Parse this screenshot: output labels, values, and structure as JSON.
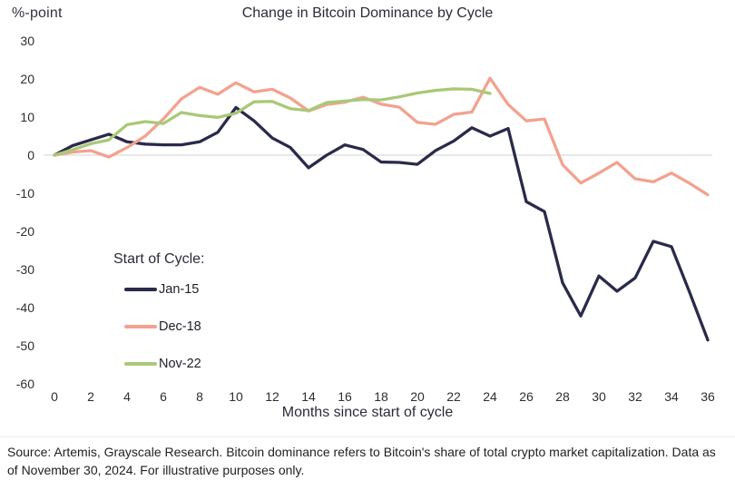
{
  "header": {
    "y_axis_unit": "%-point",
    "title": "Change in Bitcoin Dominance by Cycle"
  },
  "chart_data": {
    "type": "line",
    "title": "Change in Bitcoin Dominance by Cycle",
    "xlabel": "Months since start of cycle",
    "ylabel": "%-point",
    "xlim": [
      0,
      36
    ],
    "ylim": [
      -60,
      30
    ],
    "xticks": [
      0,
      2,
      4,
      6,
      8,
      10,
      12,
      14,
      16,
      18,
      20,
      22,
      24,
      26,
      28,
      30,
      32,
      34,
      36
    ],
    "yticks": [
      30,
      20,
      10,
      0,
      -10,
      -20,
      -30,
      -40,
      -50,
      -60
    ],
    "grid": "horizontal zero-line only",
    "legend_title": "Start of Cycle:",
    "legend_position": "inside lower-left",
    "x": [
      0,
      1,
      2,
      3,
      4,
      5,
      6,
      7,
      8,
      9,
      10,
      11,
      12,
      13,
      14,
      15,
      16,
      17,
      18,
      19,
      20,
      21,
      22,
      23,
      24,
      25,
      26,
      27,
      28,
      29,
      30,
      31,
      32,
      33,
      34,
      35,
      36
    ],
    "series": [
      {
        "name": "Jan-15",
        "color": "#2a2a4a",
        "values": [
          0,
          2.5,
          4,
          5.5,
          3.5,
          2.9,
          2.7,
          2.7,
          3.5,
          6,
          12.5,
          9,
          4.5,
          2,
          -3.3,
          0,
          2.7,
          1.5,
          -1.8,
          -1.9,
          -2.4,
          1.2,
          3.7,
          7.2,
          5,
          7,
          -12.2,
          -14.8,
          -33.5,
          -42.2,
          -31.7,
          -35.7,
          -32.2,
          -22.6,
          -24,
          -36,
          -48.5
        ]
      },
      {
        "name": "Dec-18",
        "color": "#f2a28f",
        "values": [
          0,
          0.8,
          1.2,
          -0.5,
          2,
          5,
          9.5,
          14.8,
          17.8,
          16,
          19,
          16.6,
          17.3,
          15,
          11.6,
          13.3,
          13.9,
          15.2,
          13.4,
          12.6,
          8.6,
          8.1,
          10.7,
          11.3,
          20.2,
          13.3,
          9,
          9.5,
          -2.5,
          -7.3,
          -4.7,
          -1.9,
          -6.2,
          -7,
          -4.7,
          -7.4,
          -10.4
        ]
      },
      {
        "name": "Nov-22",
        "color": "#aac878",
        "values": [
          0,
          1.4,
          3,
          4,
          8,
          8.8,
          8.3,
          11.2,
          10.4,
          9.9,
          11,
          14,
          14.1,
          12.2,
          11.7,
          13.8,
          14.2,
          14.6,
          14.5,
          15.3,
          16.3,
          17,
          17.4,
          17.3,
          16.2
        ]
      }
    ]
  },
  "legend": {
    "title": "Start of Cycle:",
    "items": [
      {
        "label": "Jan-15",
        "color": "#2a2a4a"
      },
      {
        "label": "Dec-18",
        "color": "#f2a28f"
      },
      {
        "label": "Nov-22",
        "color": "#aac878"
      }
    ]
  },
  "colors": {
    "zero_line": "#d9d9d9",
    "tick_text": "#2e2e33"
  },
  "footer": {
    "text": "Source: Artemis, Grayscale Research. Bitcoin dominance refers to Bitcoin's share of total crypto market capitalization. Data as of November 30, 2024. For illustrative purposes only."
  }
}
